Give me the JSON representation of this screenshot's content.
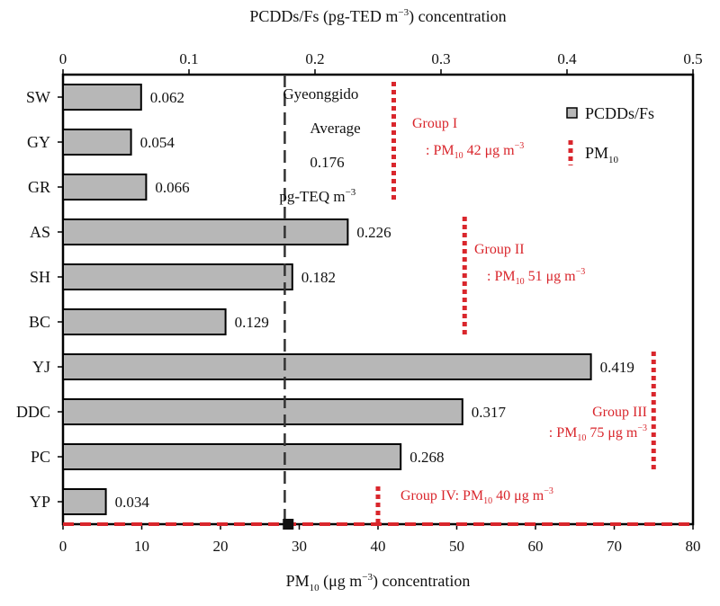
{
  "chart_data": {
    "type": "bar",
    "orientation": "horizontal",
    "categories": [
      "SW",
      "GY",
      "GR",
      "AS",
      "SH",
      "BC",
      "YJ",
      "DDC",
      "PC",
      "YP"
    ],
    "series": [
      {
        "name": "PCDDs/Fs",
        "values": [
          0.062,
          0.054,
          0.066,
          0.226,
          0.182,
          0.129,
          0.419,
          0.317,
          0.268,
          0.034
        ],
        "color": "#b7b7b7"
      }
    ],
    "value_labels": [
      "0.062",
      "0.054",
      "0.066",
      "0.226",
      "0.182",
      "0.129",
      "0.419",
      "0.317",
      "0.268",
      "0.034"
    ],
    "top_axis": {
      "label": "PCDDs/Fs (pg-TED m",
      "label_sup": "−3",
      "label_suffix": ") concentration",
      "range": [
        0,
        0.5
      ],
      "ticks": [
        0,
        0.1,
        0.2,
        0.3,
        0.4,
        0.5
      ],
      "tick_labels": [
        "0",
        "0.1",
        "0.2",
        "0.3",
        "0.4",
        "0.5"
      ]
    },
    "bottom_axis": {
      "label_main": "PM",
      "label_sub": "10",
      "label_unit": " (μg m",
      "label_sup": "−3",
      "label_suffix": ") concentration",
      "range": [
        0,
        80
      ],
      "ticks": [
        0,
        10,
        20,
        30,
        40,
        50,
        60,
        70,
        80
      ],
      "tick_labels": [
        "0",
        "10",
        "20",
        "30",
        "40",
        "50",
        "60",
        "70",
        "80"
      ]
    },
    "average": {
      "value": 0.176,
      "lines": [
        "Gyeonggido",
        "Average",
        "0.176",
        "pg-TEQ m"
      ],
      "last_sup": "−3"
    },
    "pm10_series": {
      "name": "PM",
      "name_sub": "10",
      "color": "#d9262c",
      "all_stations": 28.6,
      "groups": [
        {
          "label": "Group I",
          "desc_pre": ": PM",
          "desc_sub": "10",
          "desc_post": " 42 μg m",
          "desc_sup": "−3",
          "pm10": 42
        },
        {
          "label": "Group II",
          "desc_pre": ": PM",
          "desc_sub": "10",
          "desc_post": " 51 μg m",
          "desc_sup": "−3",
          "pm10": 51
        },
        {
          "label": "Group III",
          "desc_pre": ": PM",
          "desc_sub": "10",
          "desc_post": " 75 μg m",
          "desc_sup": "−3",
          "pm10": 75
        },
        {
          "label": "Group IV: PM",
          "desc_pre": "",
          "desc_sub": "10",
          "desc_post": " 40 μg m",
          "desc_sup": "−3",
          "pm10": 40
        }
      ]
    },
    "legend": {
      "position": "top-right"
    }
  }
}
